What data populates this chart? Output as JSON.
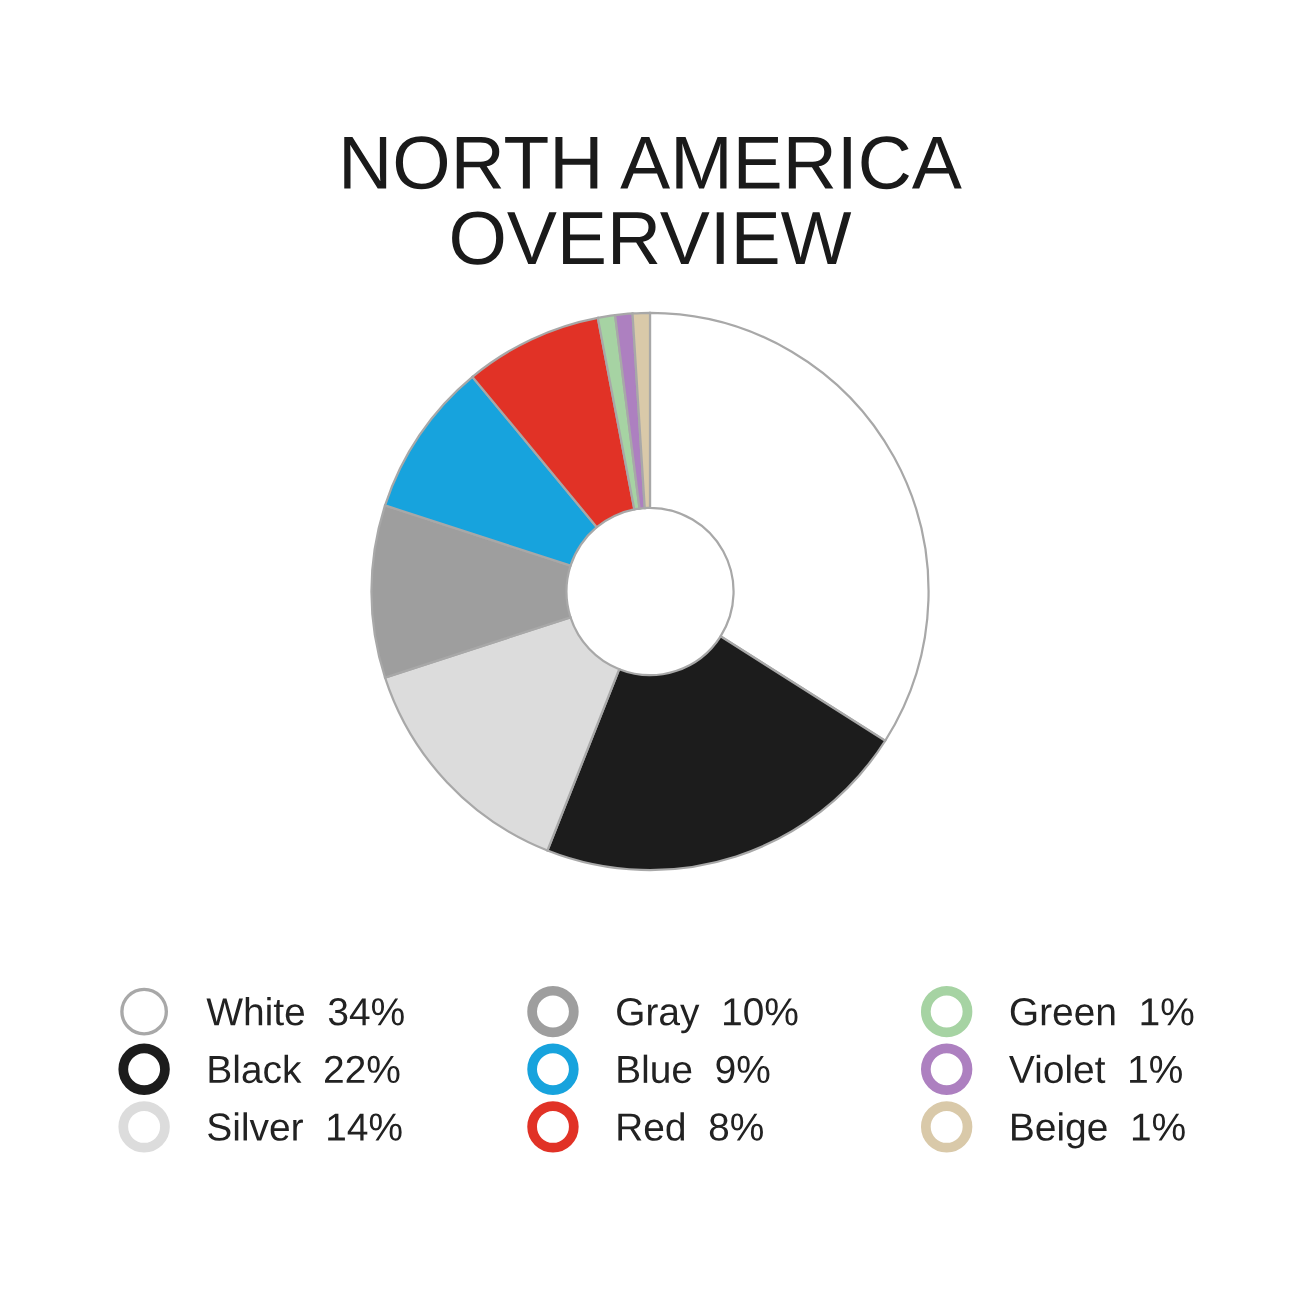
{
  "chart_data": {
    "type": "donut",
    "title": "NORTH AMERICA\nOVERVIEW",
    "categories": [
      "White",
      "Black",
      "Silver",
      "Gray",
      "Blue",
      "Red",
      "Green",
      "Violet",
      "Beige"
    ],
    "values": [
      34,
      22,
      14,
      10,
      9,
      8,
      1,
      1,
      1
    ],
    "value_labels": [
      "34%",
      "22%",
      "14%",
      "10%",
      "9%",
      "8%",
      "1%",
      "1%",
      "1%"
    ],
    "colors": [
      "#ffffff",
      "#1c1c1c",
      "#dcdcdc",
      "#9e9e9e",
      "#17a3dd",
      "#e13226",
      "#a6d3a3",
      "#ad80c0",
      "#d9c9a9"
    ],
    "legend": "bottom"
  }
}
